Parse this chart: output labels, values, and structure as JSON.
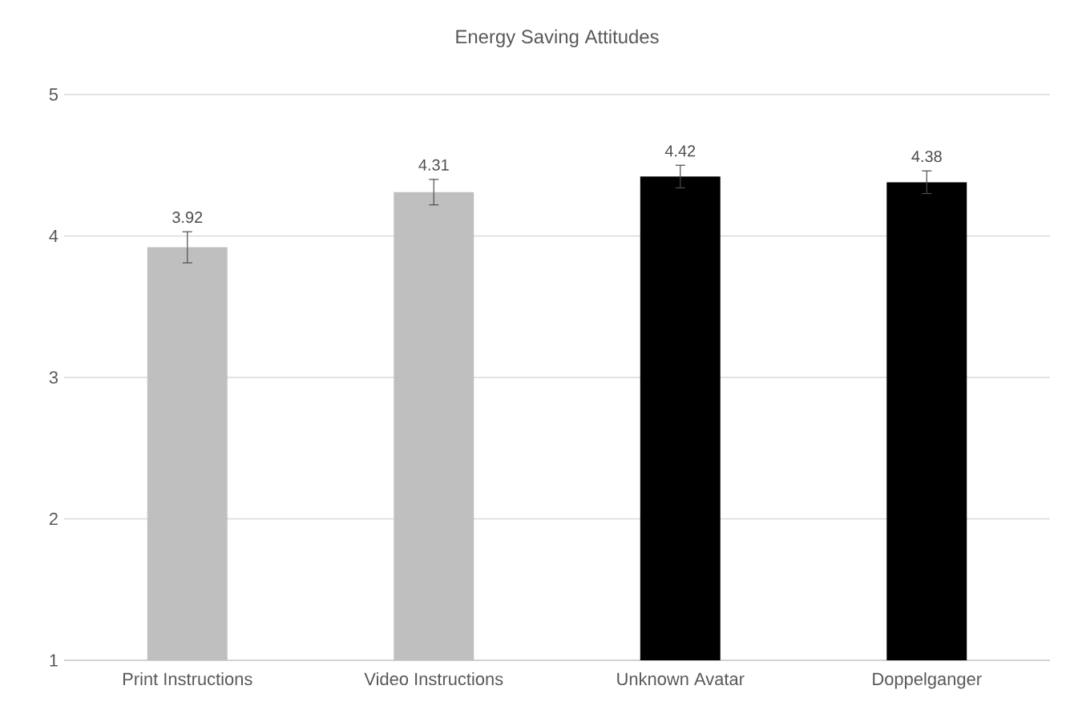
{
  "chart_data": {
    "type": "bar",
    "title": "Energy Saving Attitudes",
    "categories": [
      "Print Instructions",
      "Video Instructions",
      "Unknown Avatar",
      "Doppelganger"
    ],
    "values": [
      3.92,
      4.31,
      4.42,
      4.38
    ],
    "errors": [
      0.11,
      0.09,
      0.08,
      0.08
    ],
    "colors": [
      "#bfbfbf",
      "#bfbfbf",
      "#000000",
      "#000000"
    ],
    "ylim": [
      1,
      5
    ],
    "yticks": [
      1,
      2,
      3,
      4,
      5
    ],
    "grid": "y",
    "data_labels": true
  }
}
